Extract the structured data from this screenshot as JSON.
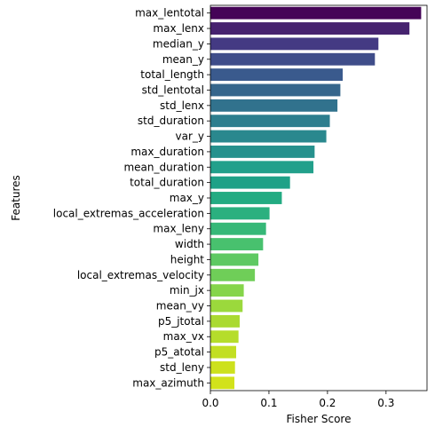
{
  "chart_data": {
    "type": "bar",
    "orientation": "horizontal",
    "xlabel": "Fisher Score",
    "ylabel": "Features",
    "xlim": [
      0,
      0.37
    ],
    "xticks": [
      0.0,
      0.1,
      0.2,
      0.3
    ],
    "xtick_labels": [
      "0.0",
      "0.1",
      "0.2",
      "0.3"
    ],
    "grid": false,
    "colormap": "viridis",
    "categories": [
      "max_lentotal",
      "max_lenx",
      "median_y",
      "mean_y",
      "total_length",
      "std_lentotal",
      "std_lenx",
      "std_duration",
      "var_y",
      "max_duration",
      "mean_duration",
      "total_duration",
      "max_y",
      "local_extremas_acceleration",
      "max_leny",
      "width",
      "height",
      "local_extremas_velocity",
      "min_jx",
      "mean_vy",
      "p5_jtotal",
      "max_vx",
      "p5_atotal",
      "std_leny",
      "max_azimuth"
    ],
    "values": [
      0.36,
      0.34,
      0.287,
      0.281,
      0.226,
      0.222,
      0.217,
      0.204,
      0.198,
      0.178,
      0.176,
      0.136,
      0.122,
      0.101,
      0.095,
      0.09,
      0.082,
      0.076,
      0.057,
      0.055,
      0.05,
      0.048,
      0.044,
      0.042,
      0.041
    ],
    "colors": [
      "#450457",
      "#46236f",
      "#443a83",
      "#3f4d8a",
      "#3a5a8d",
      "#36668c",
      "#31728d",
      "#2d7e8e",
      "#2a888e",
      "#26918d",
      "#22a08b",
      "#1fa187",
      "#23ab82",
      "#2bb07f",
      "#36b878",
      "#48c16e",
      "#5ec962",
      "#6fce58",
      "#85d54a",
      "#9bd93c",
      "#aada31",
      "#b5dd2b",
      "#c2df23",
      "#cde11d",
      "#d2e21b"
    ]
  }
}
